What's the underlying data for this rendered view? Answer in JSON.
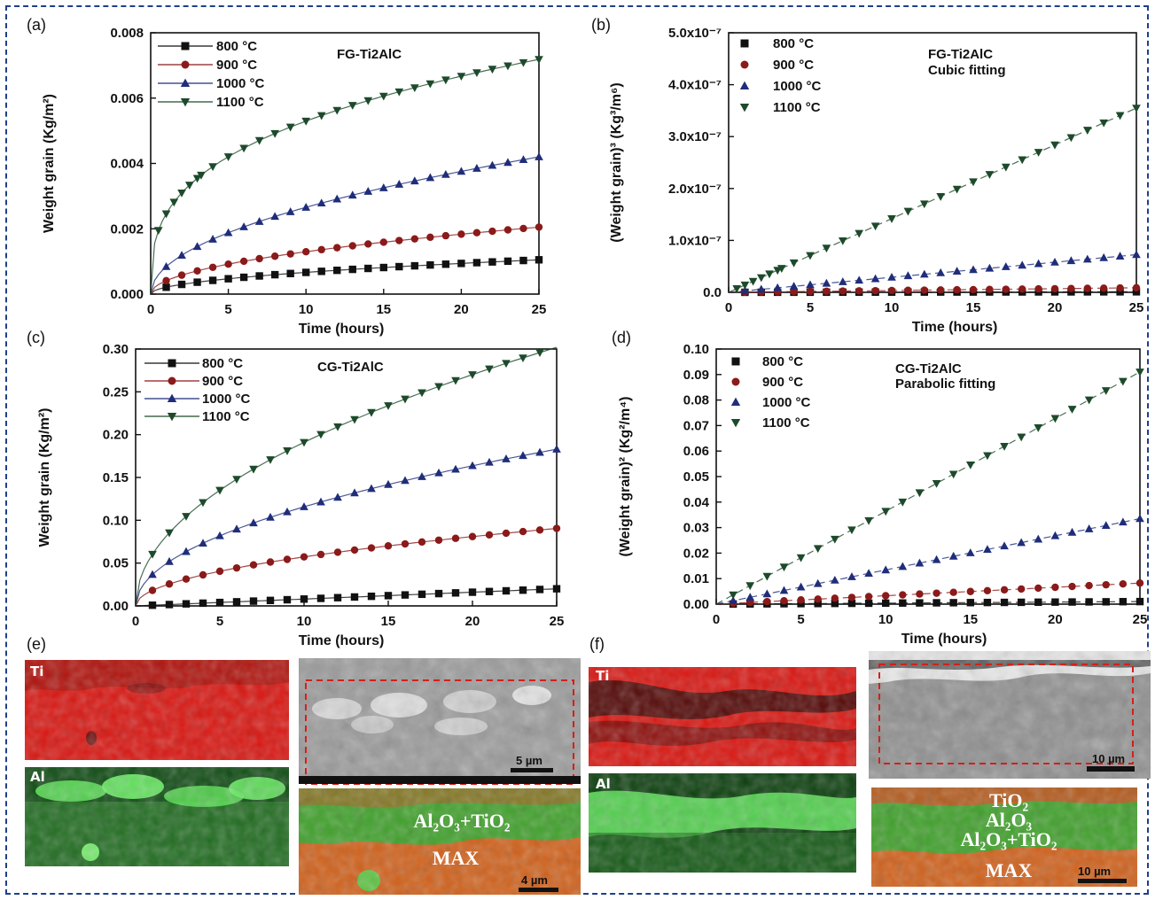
{
  "chart_data": [
    {
      "panel": "(a)",
      "type": "scatter",
      "title": "FG-Ti2AlC",
      "xlabel": "Time (hours)",
      "ylabel": "Weight grain (Kg/m²)",
      "xlim": [
        0,
        25
      ],
      "ylim": [
        0,
        0.008
      ],
      "xticks": [
        "0",
        "5",
        "10",
        "15",
        "20",
        "25"
      ],
      "yticks": [
        "0.000",
        "0.002",
        "0.004",
        "0.006",
        "0.008"
      ],
      "legend_position": "top-left",
      "series": [
        {
          "name": "800 °C",
          "marker": "square",
          "color": "#111111",
          "k": 0.00021,
          "exp": 0.5
        },
        {
          "name": "900 °C",
          "marker": "circle",
          "color": "#8b1a1a",
          "k": 0.00041,
          "exp": 0.5
        },
        {
          "name": "1000 °C",
          "marker": "triangle-up",
          "color": "#1f2d7a",
          "k": 0.00084,
          "exp": 0.5
        },
        {
          "name": "1100 °C",
          "marker": "triangle-down",
          "color": "#1d4a2b",
          "k": 0.00246,
          "exp": 0.333
        }
      ]
    },
    {
      "panel": "(b)",
      "type": "scatter",
      "title": "FG-Ti2AlC",
      "subtitle": "Cubic fitting",
      "xlabel": "Time (hours)",
      "ylabel": "(Weight grain)³ (Kg³/m⁶)",
      "xlim": [
        0,
        25
      ],
      "ylim": [
        0,
        5e-07
      ],
      "xticks": [
        "0",
        "5",
        "10",
        "15",
        "20",
        "25"
      ],
      "yticks": [
        "0.0",
        "1.0x10⁻⁷",
        "2.0x10⁻⁷",
        "3.0x10⁻⁷",
        "4.0x10⁻⁷",
        "5.0x10⁻⁷"
      ],
      "legend_position": "top-left",
      "series": [
        {
          "name": "800 °C",
          "marker": "square",
          "color": "#111111",
          "slope": 4e-11
        },
        {
          "name": "900 °C",
          "marker": "circle",
          "color": "#8b1a1a",
          "slope": 3.5e-10
        },
        {
          "name": "1000 °C",
          "marker": "triangle-up",
          "color": "#1f2d7a",
          "slope": 2.9e-09
        },
        {
          "name": "1100 °C",
          "marker": "triangle-down",
          "color": "#1d4a2b",
          "slope": 1.42e-08
        }
      ]
    },
    {
      "panel": "(c)",
      "type": "scatter",
      "title": "CG-Ti2AlC",
      "xlabel": "Time (hours)",
      "ylabel": "Weight grain (Kg/m²)",
      "xlim": [
        0,
        25
      ],
      "ylim": [
        0,
        0.3
      ],
      "xticks": [
        "0",
        "5",
        "10",
        "15",
        "20",
        "25"
      ],
      "yticks": [
        "0.00",
        "0.05",
        "0.10",
        "0.15",
        "0.20",
        "0.25",
        "0.30"
      ],
      "legend_position": "top-left",
      "series": [
        {
          "name": "800 °C",
          "marker": "square",
          "color": "#111111",
          "k": 0.0008,
          "exp": 1.0
        },
        {
          "name": "900 °C",
          "marker": "circle",
          "color": "#8b1a1a",
          "k": 0.0181,
          "exp": 0.5
        },
        {
          "name": "1000 °C",
          "marker": "triangle-up",
          "color": "#1f2d7a",
          "k": 0.0366,
          "exp": 0.5
        },
        {
          "name": "1100 °C",
          "marker": "triangle-down",
          "color": "#1d4a2b",
          "k": 0.0604,
          "exp": 0.5
        }
      ]
    },
    {
      "panel": "(d)",
      "type": "scatter",
      "title": "CG-Ti2AlC",
      "subtitle": "Parabolic fitting",
      "xlabel": "Time (hours)",
      "ylabel": "(Weight grain)² (Kg²/m⁴)",
      "xlim": [
        0,
        25
      ],
      "ylim": [
        0,
        0.1
      ],
      "xticks": [
        "0",
        "5",
        "10",
        "15",
        "20",
        "25"
      ],
      "yticks": [
        "0.00",
        "0.01",
        "0.02",
        "0.03",
        "0.04",
        "0.05",
        "0.06",
        "0.07",
        "0.08",
        "0.09",
        "0.10"
      ],
      "legend_position": "top-left",
      "series": [
        {
          "name": "800 °C",
          "marker": "square",
          "color": "#111111",
          "slope": 4e-05
        },
        {
          "name": "900 °C",
          "marker": "circle",
          "color": "#8b1a1a",
          "slope": 0.00033
        },
        {
          "name": "1000 °C",
          "marker": "triangle-up",
          "color": "#1f2d7a",
          "slope": 0.00134
        },
        {
          "name": "1100 °C",
          "marker": "triangle-down",
          "color": "#1d4a2b",
          "slope": 0.00364
        }
      ]
    }
  ],
  "micrographs": {
    "e": {
      "panel": "(e)",
      "ti_label": "Ti",
      "al_label": "Al",
      "sem_scale": "5 µm",
      "overlay_scale": "4 µm",
      "oxide_label": "Al₂O₃+TiO₂",
      "max_label": "MAX"
    },
    "f": {
      "panel": "(f)",
      "ti_label": "Ti",
      "al_label": "Al",
      "sem_scale": "10 µm",
      "overlay_scale": "10 µm",
      "layer1": "TiO₂",
      "layer2": "Al₂O₃",
      "layer3": "Al₂O₃+TiO₂",
      "max_label": "MAX"
    }
  },
  "colors": {
    "ti_map": "#d9140f",
    "al_map": "#1fa81f",
    "overlay_top": "#3fa02a",
    "overlay_bottom": "#d0601a",
    "sem": "#a9a9a9",
    "frame": "#1f3f8a",
    "dashed_box": "#d3201a"
  }
}
